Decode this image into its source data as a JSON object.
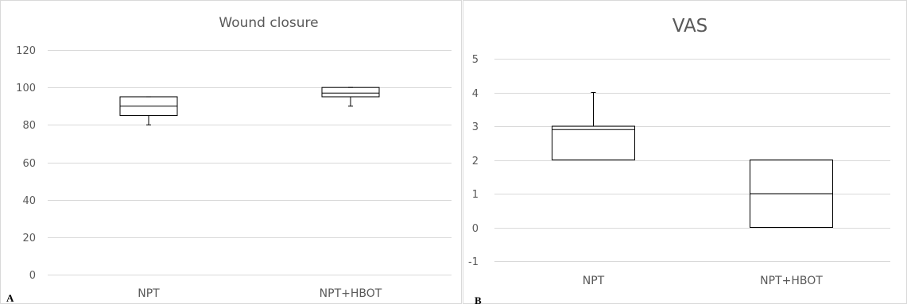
{
  "chart_data": [
    {
      "type": "box",
      "panel_label": "A",
      "title": "Wound closure",
      "xlabel": "",
      "ylabel": "",
      "categories": [
        "NPT",
        "NPT+HBOT"
      ],
      "ylim": [
        0,
        120
      ],
      "ytick_step": 20,
      "grid": true,
      "boxes": [
        {
          "category": "NPT",
          "min": 80,
          "q1": 85,
          "median": 90,
          "q3": 95,
          "max": 95
        },
        {
          "category": "NPT+HBOT",
          "min": 90,
          "q1": 95,
          "median": 97,
          "q3": 100,
          "max": 100
        }
      ]
    },
    {
      "type": "box",
      "panel_label": "B",
      "title": "VAS",
      "xlabel": "",
      "ylabel": "",
      "categories": [
        "NPT",
        "NPT+HBOT"
      ],
      "ylim": [
        -1,
        5
      ],
      "ytick_step": 1,
      "grid": true,
      "boxes": [
        {
          "category": "NPT",
          "min": 2,
          "q1": 2,
          "median": 2.9,
          "q3": 3,
          "max": 4
        },
        {
          "category": "NPT+HBOT",
          "min": 0,
          "q1": 0,
          "median": 1,
          "q3": 2,
          "max": 2
        }
      ]
    }
  ],
  "colors": {
    "grid": "#d9d9d9",
    "box": "#000000",
    "text": "#595959",
    "border": "#d9d9d9"
  }
}
